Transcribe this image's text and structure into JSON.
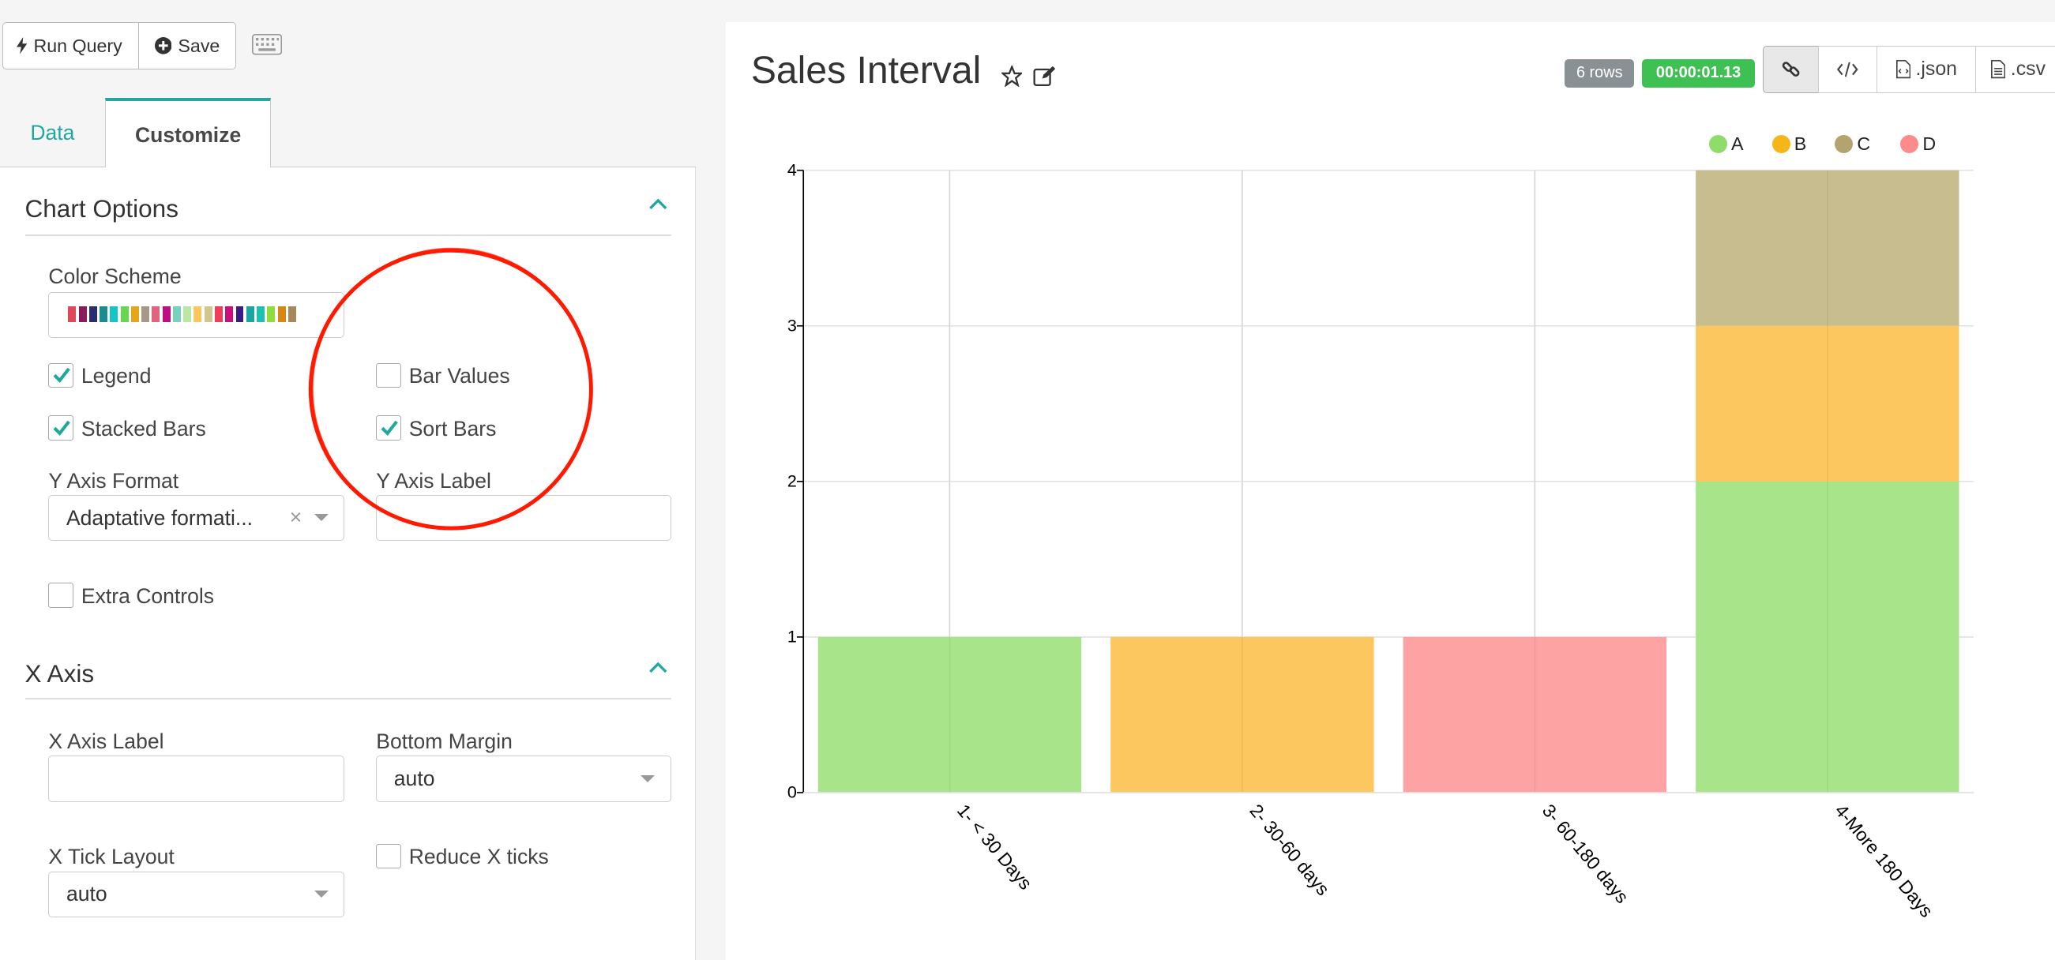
{
  "toolbar": {
    "run_query_label": "Run Query",
    "save_label": "Save",
    "keyboard_icon": "keyboard-icon"
  },
  "tabs": {
    "data": "Data",
    "customize": "Customize"
  },
  "chart_options": {
    "title": "Chart Options",
    "color_scheme_label": "Color Scheme",
    "color_scheme_swatches": [
      "#e0475a",
      "#8c1a5c",
      "#2b2d72",
      "#1c8b8f",
      "#13c5c4",
      "#67d84e",
      "#e6a619",
      "#a6998a",
      "#e1637d",
      "#bd0e85",
      "#76d1bf",
      "#b9e8a4",
      "#fbc75d",
      "#d0c68e",
      "#ef3d5a",
      "#cc0d7c",
      "#3a1a89",
      "#19a6a2",
      "#19c2b1",
      "#8dde3c",
      "#da8712",
      "#a5885d"
    ],
    "legend_label": "Legend",
    "legend_checked": true,
    "bar_values_label": "Bar Values",
    "bar_values_checked": false,
    "stacked_bars_label": "Stacked Bars",
    "stacked_bars_checked": true,
    "sort_bars_label": "Sort Bars",
    "sort_bars_checked": true,
    "y_axis_format_label": "Y Axis Format",
    "y_axis_format_value": "Adaptative formati...",
    "y_axis_label_label": "Y Axis Label",
    "y_axis_label_value": "",
    "extra_controls_label": "Extra Controls",
    "extra_controls_checked": false
  },
  "x_axis": {
    "title": "X Axis",
    "x_axis_label_label": "X Axis Label",
    "x_axis_label_value": "",
    "bottom_margin_label": "Bottom Margin",
    "bottom_margin_value": "auto",
    "x_tick_layout_label": "X Tick Layout",
    "x_tick_layout_value": "auto",
    "reduce_x_ticks_label": "Reduce X ticks",
    "reduce_x_ticks_checked": false
  },
  "header": {
    "title": "Sales Interval",
    "rows_badge": "6 rows",
    "time_badge": "00:00:01.13",
    "json_label": ".json",
    "csv_label": ".csv"
  },
  "colors": {
    "accent": "#20a7a0",
    "rows_badge": "#8a9195",
    "time_badge": "#3fc053",
    "annotation": "#ff1a00"
  },
  "chart_data": {
    "type": "bar",
    "stacked": true,
    "categories": [
      "1- < 30 Days",
      "2- 30-60 days",
      "3- 60-180 days",
      "4-More 180 Days"
    ],
    "series": [
      {
        "name": "A",
        "color": "#a8e48a",
        "values": [
          1,
          0,
          0,
          2
        ]
      },
      {
        "name": "B",
        "color": "#fdc75f",
        "values": [
          0,
          1,
          0,
          1
        ]
      },
      {
        "name": "C",
        "color": "#c8bd8f",
        "values": [
          0,
          0,
          0,
          1
        ]
      },
      {
        "name": "D",
        "color": "#fea3a4",
        "values": [
          0,
          0,
          1,
          0
        ]
      }
    ],
    "yticks": [
      0,
      1,
      2,
      3,
      4
    ],
    "ylim": [
      0,
      4
    ],
    "legend": "top-right",
    "grid": true
  }
}
